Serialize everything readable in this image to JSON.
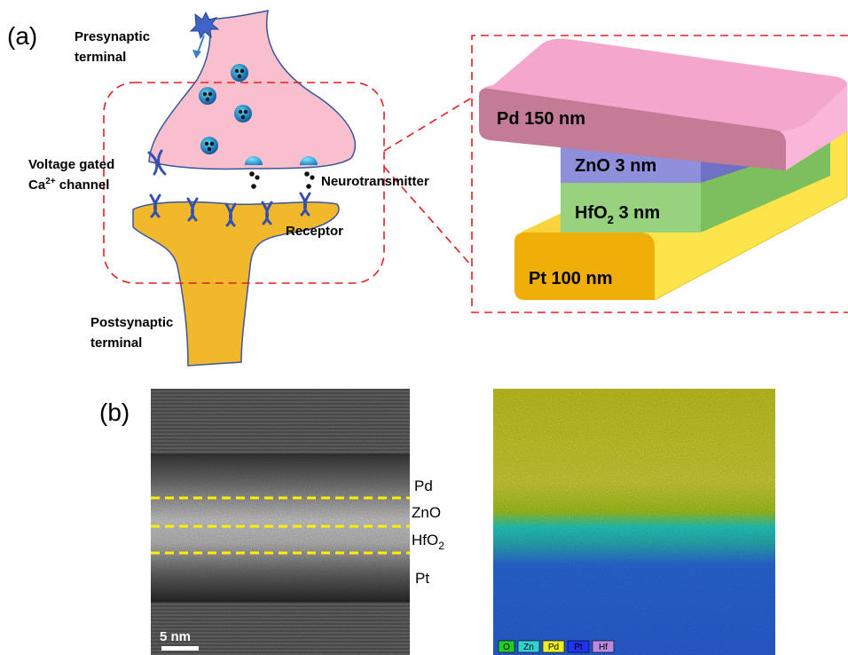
{
  "panel_a": {
    "panel_label": "(a)",
    "presynaptic": [
      "Presynaptic",
      "terminal"
    ],
    "postsynaptic": [
      "Postsynaptic",
      "terminal"
    ],
    "channel": {
      "line1": "Voltage gated",
      "ca": "Ca",
      "sup": "2+",
      "rest": " channel"
    },
    "neurotransmitter": "Neurotransmitter",
    "receptor": "Receptor",
    "layers": {
      "pd": "Pd 150 nm",
      "zno": "ZnO 3 nm",
      "hfo2": {
        "base": "HfO",
        "sub": "2",
        "rest": " 3 nm"
      },
      "pt": "Pt 100 nm"
    },
    "colors": {
      "presynaptic_fill": "#f7c0cc",
      "postsynaptic_fill": "#f0b82a",
      "outline": "#3a55a0",
      "pd_top": "#f4a6cc",
      "pd_front": "#c37b96",
      "zno": "#8f8fdc",
      "hfo2": "#97d37e",
      "pt_front": "#f0ae08",
      "pt_side": "#fce44a",
      "dashed_box": "#e02020"
    }
  },
  "panel_b": {
    "panel_label": "(b)",
    "layer_labels": {
      "pd": "Pd",
      "zno": "ZnO",
      "hfo2": {
        "base": "HfO",
        "sub": "2"
      },
      "pt": "Pt"
    },
    "scale_bar": "5 nm",
    "legend": [
      {
        "label": "O",
        "color": "#22cc22"
      },
      {
        "label": "Zn",
        "color": "#33d0d0"
      },
      {
        "label": "Pd",
        "color": "#eeee22"
      },
      {
        "label": "Pt",
        "color": "#2233ee"
      },
      {
        "label": "Hf",
        "color": "#b88ae0"
      }
    ],
    "dash_color": "#ffee00"
  }
}
